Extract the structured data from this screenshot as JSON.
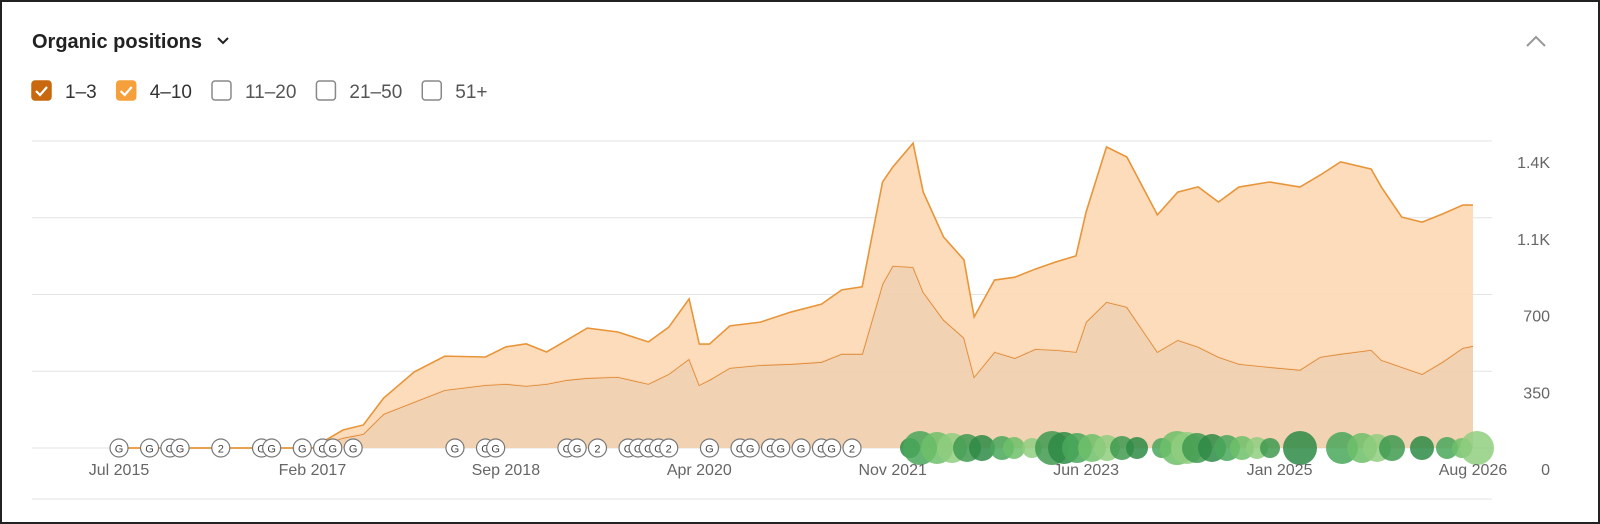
{
  "chart_data": {
    "type": "stacked-area",
    "title": "Organic positions",
    "x": [
      "2015-07",
      "2017-02",
      "2017-05",
      "2017-07",
      "2017-09",
      "2017-12",
      "2018-03",
      "2018-07",
      "2018-09",
      "2018-11",
      "2019-01",
      "2019-03",
      "2019-05",
      "2019-08",
      "2019-11",
      "2020-01",
      "2020-03",
      "2020-04",
      "2020-05",
      "2020-07",
      "2020-10",
      "2021-01",
      "2021-04",
      "2021-06",
      "2021-08",
      "2021-10",
      "2021-11",
      "2022-01",
      "2022-02",
      "2022-04",
      "2022-06",
      "2022-07",
      "2022-09",
      "2022-11",
      "2023-01",
      "2023-03",
      "2023-05",
      "2023-06",
      "2023-08",
      "2023-10",
      "2024-01",
      "2024-03",
      "2024-05",
      "2024-07",
      "2024-09",
      "2024-12",
      "2025-03",
      "2025-05",
      "2025-07",
      "2025-10",
      "2025-11",
      "2026-01",
      "2026-03",
      "2026-05",
      "2026-07",
      "2026-08"
    ],
    "series": [
      {
        "name": "1–3",
        "color": "#c8690f",
        "fill": "#f0cdaa",
        "line": "#dd8530",
        "checked": true,
        "values": [
          0,
          0,
          46,
          64,
          155,
          210,
          264,
          287,
          292,
          283,
          292,
          310,
          319,
          324,
          292,
          337,
          406,
          287,
          310,
          365,
          378,
          383,
          392,
          429,
          429,
          748,
          830,
          825,
          711,
          584,
          502,
          324,
          438,
          410,
          451,
          447,
          438,
          575,
          666,
          643,
          438,
          492,
          461,
          415,
          383,
          369,
          356,
          415,
          429,
          447,
          401,
          369,
          337,
          392,
          456,
          465
        ]
      },
      {
        "name": "4–10",
        "color": "#f5a03a",
        "fill": "#fdd8b4",
        "line": "#e8953a",
        "checked": true,
        "values": [
          0,
          0,
          36,
          41,
          73,
          137,
          155,
          128,
          169,
          192,
          146,
          182,
          228,
          205,
          192,
          214,
          274,
          187,
          164,
          192,
          196,
          237,
          264,
          292,
          306,
          465,
          451,
          565,
          456,
          378,
          356,
          274,
          328,
          369,
          365,
          401,
          438,
          502,
          707,
          684,
          625,
          675,
          730,
          707,
          807,
          844,
          834,
          830,
          876,
          825,
          789,
          684,
          693,
          675,
          652,
          643
        ]
      }
    ],
    "hidden_series": [
      "11–20",
      "21–50",
      "51+"
    ],
    "xlim": [
      "2015-07",
      "2026-08"
    ],
    "xticks": [
      {
        "value": "2015-07",
        "label": "Jul 2015"
      },
      {
        "value": "2017-02",
        "label": "Feb 2017"
      },
      {
        "value": "2018-09",
        "label": "Sep 2018"
      },
      {
        "value": "2020-04",
        "label": "Apr 2020"
      },
      {
        "value": "2021-11",
        "label": "Nov 2021"
      },
      {
        "value": "2023-06",
        "label": "Jun 2023"
      },
      {
        "value": "2025-01",
        "label": "Jan 2025"
      },
      {
        "value": "2026-08",
        "label": "Aug 2026"
      }
    ],
    "ylim": [
      0,
      1400
    ],
    "yticks": [
      0,
      350,
      700,
      {
        "value": 1050,
        "label": "1.1K"
      },
      {
        "value": 1400,
        "label": "1.4K"
      }
    ],
    "grid": true,
    "events": [
      {
        "x": "2015-07",
        "label": "G"
      },
      {
        "x": "2015-10",
        "label": "G"
      },
      {
        "x": "2015-12",
        "label": "G"
      },
      {
        "x": "2016-01",
        "label": "G"
      },
      {
        "x": "2016-05",
        "label": "2"
      },
      {
        "x": "2016-09",
        "label": "G"
      },
      {
        "x": "2016-10",
        "label": "G"
      },
      {
        "x": "2017-01",
        "label": "G"
      },
      {
        "x": "2017-03",
        "label": "G"
      },
      {
        "x": "2017-04",
        "label": "G"
      },
      {
        "x": "2017-06",
        "label": "G"
      },
      {
        "x": "2018-04",
        "label": "G"
      },
      {
        "x": "2018-07",
        "label": "G"
      },
      {
        "x": "2018-08",
        "label": "G"
      },
      {
        "x": "2019-03",
        "label": "G"
      },
      {
        "x": "2019-04",
        "label": "G"
      },
      {
        "x": "2019-06",
        "label": "2"
      },
      {
        "x": "2019-09",
        "label": "G"
      },
      {
        "x": "2019-10",
        "label": "G"
      },
      {
        "x": "2019-11",
        "label": "G"
      },
      {
        "x": "2019-12",
        "label": "G"
      },
      {
        "x": "2020-01",
        "label": "2"
      },
      {
        "x": "2020-05",
        "label": "G"
      },
      {
        "x": "2020-08",
        "label": "G"
      },
      {
        "x": "2020-09",
        "label": "G"
      },
      {
        "x": "2020-11",
        "label": "G"
      },
      {
        "x": "2020-12",
        "label": "G"
      },
      {
        "x": "2021-02",
        "label": "G"
      },
      {
        "x": "2021-04",
        "label": "G"
      },
      {
        "x": "2021-05",
        "label": "G"
      },
      {
        "x": "2021-07",
        "label": "2"
      }
    ]
  }
}
